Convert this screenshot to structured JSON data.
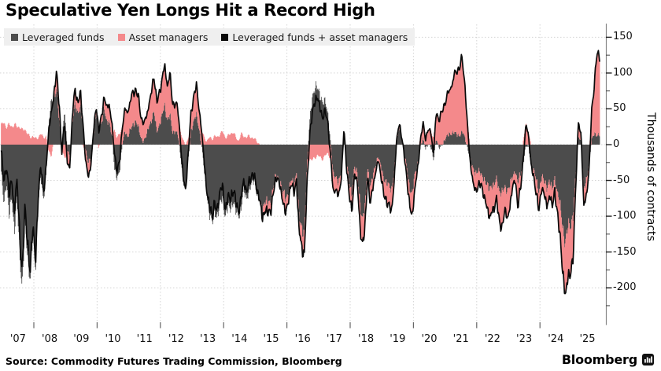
{
  "title": "Speculative Yen Longs Hit a Record High",
  "source": "Source: Commodity Futures Trading Commission, Bloomberg",
  "branding": {
    "wordmark": "Bloomberg"
  },
  "colors": {
    "leveraged_funds": "#4C4C4C",
    "asset_managers": "#F4898B",
    "combined_line": "#0A0A0A",
    "legend_background": "#efefef",
    "grid": "#d4d4d4",
    "axis": "#888888"
  },
  "chart_data": {
    "type": "bar",
    "subtype": "diverging stacked bars with sum line overlay",
    "title": "Speculative Yen Longs Hit a Record High",
    "ylabel": "Thousands of contracts",
    "ylim": [
      -225,
      150
    ],
    "y_ticks": [
      150,
      100,
      50,
      0,
      -50,
      -100,
      -150,
      -200
    ],
    "y_minor_ticks": [
      125,
      75,
      25,
      -25,
      -75,
      -125,
      -175,
      -225
    ],
    "grid": "dotted",
    "legend_position": "top-left",
    "x_start": "2006-06",
    "x_end": "2025-05",
    "x_interval": "month",
    "x_tick_labels": [
      "'07",
      "'08",
      "'09",
      "'10",
      "'11",
      "'12",
      "'13",
      "'14",
      "'15",
      "'16",
      "'17",
      "'18",
      "'19",
      "'20",
      "'21",
      "'22",
      "'23",
      "'24",
      "'25"
    ],
    "x_tick_years": [
      2007,
      2008,
      2009,
      2010,
      2011,
      2012,
      2013,
      2014,
      2015,
      2016,
      2017,
      2018,
      2019,
      2020,
      2021,
      2022,
      2023,
      2024,
      2025
    ],
    "series": [
      {
        "name": "Leveraged funds",
        "role": "bar",
        "color": "#4C4C4C",
        "values": [
          -40,
          -80,
          -55,
          -105,
          -70,
          -120,
          -75,
          -145,
          -195,
          -112,
          -155,
          -188,
          -132,
          -173,
          -80,
          -45,
          -75,
          -42,
          25,
          60,
          65,
          74,
          35,
          0,
          50,
          -5,
          -15,
          30,
          55,
          45,
          50,
          30,
          -5,
          -25,
          -20,
          15,
          45,
          20,
          30,
          50,
          30,
          35,
          15,
          -35,
          -45,
          -35,
          0,
          20,
          10,
          20,
          30,
          35,
          25,
          10,
          5,
          10,
          25,
          35,
          45,
          20,
          30,
          40,
          55,
          35,
          40,
          15,
          20,
          15,
          -15,
          -45,
          -65,
          -20,
          20,
          30,
          40,
          25,
          0,
          -35,
          -65,
          -95,
          -113,
          -92,
          -105,
          -85,
          -73,
          -100,
          -87,
          -85,
          -78,
          -95,
          -100,
          -90,
          -67,
          -75,
          -62,
          -55,
          -48,
          -65,
          -80,
          -97,
          -78,
          -85,
          -83,
          -60,
          -45,
          -45,
          -52,
          -70,
          -80,
          -65,
          -50,
          -58,
          -37,
          -100,
          -120,
          -118,
          -35,
          30,
          67,
          78,
          78,
          73,
          60,
          60,
          42,
          0,
          -48,
          -45,
          -53,
          -40,
          20,
          -22,
          -55,
          -70,
          -30,
          -43,
          -80,
          -103,
          -90,
          -30,
          -55,
          -45,
          -30,
          -15,
          -33,
          -50,
          -50,
          -57,
          -65,
          -35,
          0,
          25,
          10,
          -15,
          -40,
          -60,
          -68,
          -40,
          -25,
          -5,
          8,
          -5,
          0,
          -5,
          -20,
          10,
          -5,
          0,
          5,
          10,
          15,
          15,
          15,
          15,
          14,
          18,
          10,
          -5,
          -25,
          -35,
          -40,
          -40,
          -40,
          -45,
          -55,
          -60,
          -55,
          -60,
          -50,
          -65,
          -70,
          -60,
          -60,
          -55,
          -45,
          -35,
          -55,
          -45,
          -25,
          -3,
          -3,
          -25,
          -35,
          -50,
          -65,
          -45,
          -55,
          -60,
          -50,
          -65,
          -45,
          -65,
          -85,
          -115,
          -139,
          -120,
          -116,
          -95,
          -40,
          15,
          5,
          -65,
          -50,
          -25,
          5,
          15,
          14,
          14
        ]
      },
      {
        "name": "Asset managers",
        "role": "bar",
        "color": "#F4898B",
        "values": [
          28,
          30,
          25,
          28,
          25,
          28,
          25,
          25,
          20,
          22,
          15,
          10,
          12,
          8,
          10,
          15,
          10,
          12,
          -10,
          -15,
          5,
          25,
          20,
          -10,
          -15,
          -20,
          -15,
          10,
          20,
          15,
          20,
          0,
          -15,
          -20,
          -10,
          5,
          10,
          -5,
          10,
          15,
          20,
          25,
          15,
          20,
          10,
          15,
          25,
          30,
          35,
          40,
          45,
          45,
          40,
          30,
          25,
          25,
          30,
          40,
          50,
          40,
          45,
          50,
          55,
          50,
          55,
          40,
          40,
          35,
          20,
          5,
          0,
          10,
          25,
          35,
          40,
          30,
          20,
          10,
          5,
          10,
          8,
          12,
          10,
          15,
          18,
          10,
          12,
          15,
          18,
          10,
          5,
          15,
          12,
          10,
          12,
          10,
          8,
          5,
          0,
          -8,
          -12,
          -15,
          -12,
          -10,
          -5,
          0,
          -8,
          -15,
          -20,
          -10,
          -5,
          -12,
          -8,
          -20,
          -25,
          -30,
          -25,
          -20,
          -22,
          -18,
          -15,
          -18,
          -20,
          -15,
          -12,
          -20,
          -25,
          -15,
          -20,
          -10,
          5,
          -8,
          -15,
          -25,
          -10,
          -12,
          -30,
          -35,
          -30,
          -10,
          -25,
          -15,
          -10,
          -5,
          -12,
          -20,
          -25,
          -28,
          -30,
          -15,
          5,
          5,
          0,
          -5,
          -15,
          -25,
          -30,
          -20,
          -5,
          10,
          20,
          15,
          20,
          20,
          10,
          35,
          40,
          45,
          50,
          55,
          60,
          70,
          80,
          90,
          98,
          100,
          70,
          25,
          -5,
          -20,
          -25,
          -20,
          -15,
          -20,
          -30,
          -40,
          -35,
          -35,
          -25,
          -45,
          -50,
          -30,
          -40,
          -30,
          -15,
          -10,
          -35,
          -20,
          5,
          28,
          18,
          0,
          -10,
          -20,
          -25,
          -15,
          -20,
          -25,
          -20,
          -25,
          -15,
          -30,
          -45,
          -60,
          -75,
          -70,
          -68,
          -55,
          -15,
          20,
          10,
          -25,
          -20,
          -10,
          40,
          70,
          115,
          108
        ]
      },
      {
        "name": "Leveraged funds + asset managers",
        "role": "line",
        "color": "#0A0A0A",
        "derived": "sum of the two bar series"
      }
    ]
  }
}
